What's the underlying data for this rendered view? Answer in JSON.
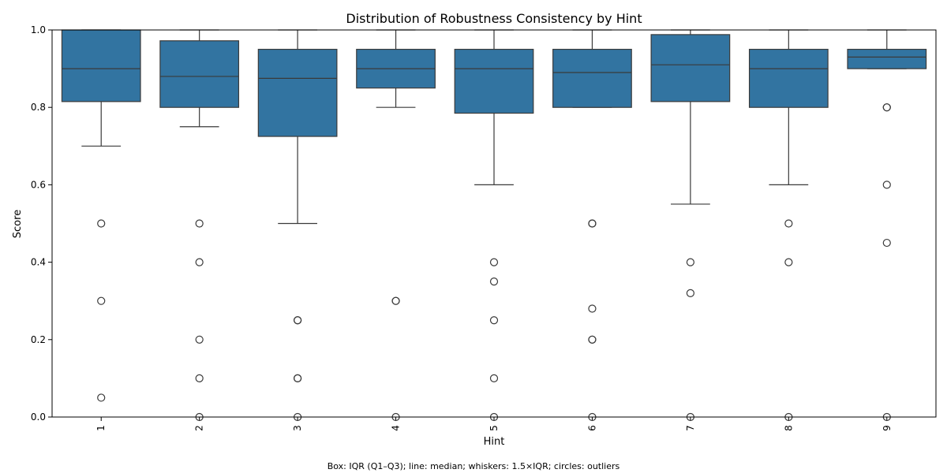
{
  "chart_data": {
    "type": "box",
    "title": "Distribution of Robustness Consistency by Hint",
    "xlabel": "Hint",
    "ylabel": "Score",
    "caption": "Box: IQR (Q1–Q3); line: median; whiskers: 1.5×IQR; circles: outliers",
    "ylim": [
      0,
      1.0
    ],
    "yticks": [
      "0.0",
      "0.2",
      "0.4",
      "0.6",
      "0.8",
      "1.0"
    ],
    "categories": [
      "1",
      "2",
      "3",
      "4",
      "5",
      "6",
      "7",
      "8",
      "9"
    ],
    "box_color": "#3274a1",
    "edge_color": "#3a3a3a",
    "boxes": [
      {
        "category": "1",
        "whisker_low": 0.7,
        "q1": 0.815,
        "median": 0.9,
        "q3": 1.0,
        "whisker_high": 1.0,
        "outliers": [
          0.5,
          0.3,
          0.05
        ]
      },
      {
        "category": "2",
        "whisker_low": 0.75,
        "q1": 0.8,
        "median": 0.88,
        "q3": 0.972,
        "whisker_high": 1.0,
        "outliers": [
          0.5,
          0.4,
          0.2,
          0.1,
          0.0
        ]
      },
      {
        "category": "3",
        "whisker_low": 0.5,
        "q1": 0.725,
        "median": 0.875,
        "q3": 0.95,
        "whisker_high": 1.0,
        "outliers": [
          0.25,
          0.25,
          0.1,
          0.1,
          0.0
        ]
      },
      {
        "category": "4",
        "whisker_low": 0.8,
        "q1": 0.85,
        "median": 0.9,
        "q3": 0.95,
        "whisker_high": 1.0,
        "outliers": [
          0.3,
          0.3,
          0.0
        ]
      },
      {
        "category": "5",
        "whisker_low": 0.6,
        "q1": 0.785,
        "median": 0.9,
        "q3": 0.95,
        "whisker_high": 1.0,
        "outliers": [
          0.4,
          0.35,
          0.25,
          0.1,
          0.0
        ]
      },
      {
        "category": "6",
        "whisker_low": 0.8,
        "q1": 0.8,
        "median": 0.89,
        "q3": 0.95,
        "whisker_high": 1.0,
        "outliers": [
          0.5,
          0.5,
          0.28,
          0.2,
          0.2,
          0.0
        ]
      },
      {
        "category": "7",
        "whisker_low": 0.55,
        "q1": 0.815,
        "median": 0.91,
        "q3": 0.988,
        "whisker_high": 1.0,
        "outliers": [
          0.4,
          0.32,
          0.0
        ]
      },
      {
        "category": "8",
        "whisker_low": 0.6,
        "q1": 0.8,
        "median": 0.9,
        "q3": 0.95,
        "whisker_high": 1.0,
        "outliers": [
          0.5,
          0.4,
          0.0
        ]
      },
      {
        "category": "9",
        "whisker_low": 0.9,
        "q1": 0.9,
        "median": 0.93,
        "q3": 0.95,
        "whisker_high": 1.0,
        "outliers": [
          0.8,
          0.8,
          0.6,
          0.45,
          0.0
        ]
      }
    ]
  }
}
